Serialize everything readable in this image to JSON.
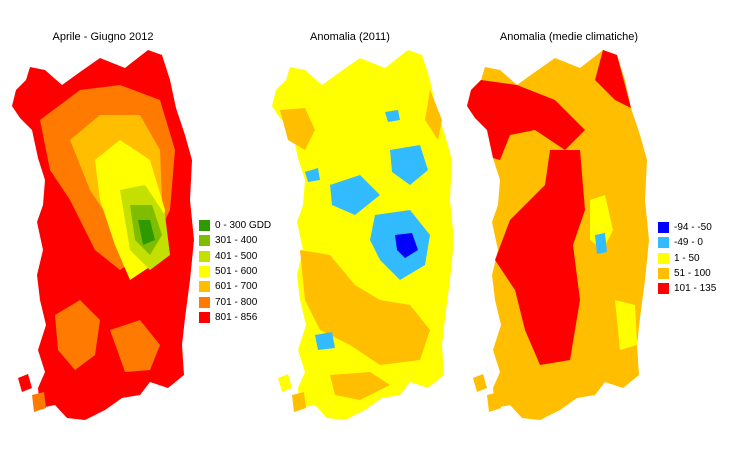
{
  "maps": [
    {
      "title": "Aprile - Giugno 2012"
    },
    {
      "title": "Anomalia (2011)"
    },
    {
      "title": "Anomalia (medie climatiche)"
    }
  ],
  "legend_gdd": [
    {
      "label": "0 - 300 GDD",
      "color": "#2f9a00"
    },
    {
      "label": "301 - 400",
      "color": "#7fbd00"
    },
    {
      "label": "401 - 500",
      "color": "#c4e000"
    },
    {
      "label": "501 - 600",
      "color": "#ffff00"
    },
    {
      "label": "601 - 700",
      "color": "#ffbe00"
    },
    {
      "label": "701 - 800",
      "color": "#ff7a00"
    },
    {
      "label": "801 - 856",
      "color": "#ff0000"
    }
  ],
  "legend_anomaly": [
    {
      "label": "-94 - -50",
      "color": "#0000ff"
    },
    {
      "label": "-49 - 0",
      "color": "#33bbff"
    },
    {
      "label": "1 - 50",
      "color": "#ffff00"
    },
    {
      "label": "51 - 100",
      "color": "#ffbe00"
    },
    {
      "label": "101 - 135",
      "color": "#ff0000"
    }
  ],
  "palette": {
    "red": "#ff0000",
    "orange": "#ff7a00",
    "amber": "#ffbe00",
    "yellow": "#ffff00",
    "yellowgreen": "#c4e000",
    "green": "#7fbd00",
    "darkgreen": "#2f9a00",
    "cyan": "#33bbff",
    "blue": "#0000ff"
  }
}
